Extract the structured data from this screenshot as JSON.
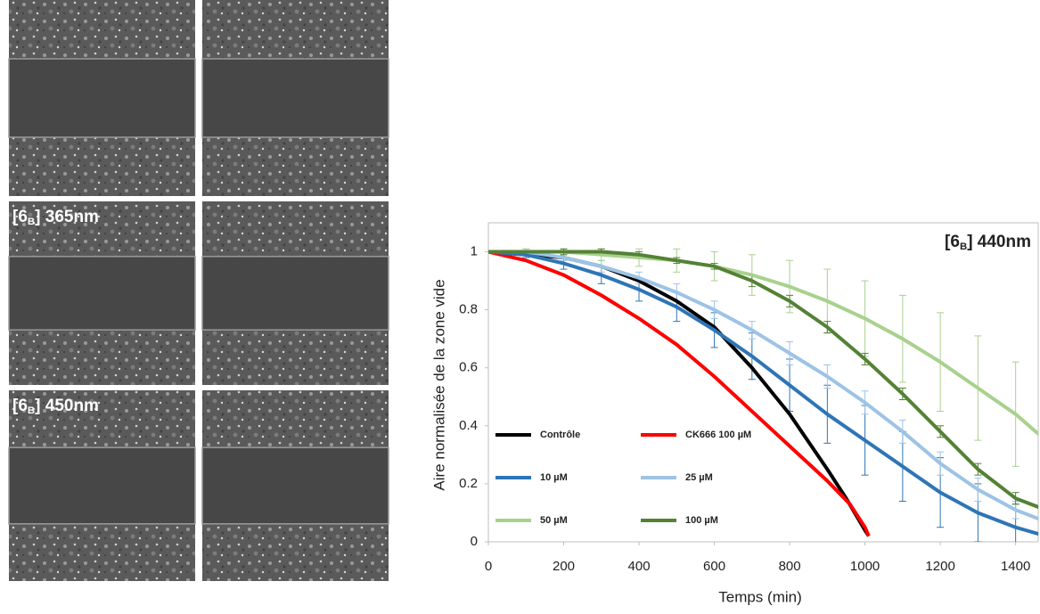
{
  "panels": [
    {
      "label": null
    },
    {
      "label": null
    },
    {
      "label": [
        "[6",
        "B",
        "] 365nm"
      ]
    },
    {
      "label": null
    },
    {
      "label": [
        "[6",
        "B",
        "] 450nm"
      ]
    },
    {
      "label": null
    }
  ],
  "chart_data": {
    "type": "line",
    "annotation": [
      "[6",
      "B",
      "] 440nm"
    ],
    "x_label": "Temps (min)",
    "y_label": "Aire normalisée de la zone vide",
    "xlim": [
      0,
      1460
    ],
    "ylim": [
      0,
      1.1
    ],
    "xticks": [
      0,
      200,
      400,
      600,
      800,
      1000,
      1200,
      1400
    ],
    "yticks": [
      0,
      0.2,
      0.4,
      0.6,
      0.8,
      1
    ],
    "legend": "lower left",
    "series": [
      {
        "name": "Contrôle",
        "color": "#000000",
        "x": [
          0,
          100,
          200,
          300,
          400,
          500,
          600,
          700,
          800,
          900,
          950,
          1000,
          1010
        ],
        "values": [
          1,
          0.99,
          0.98,
          0.95,
          0.9,
          0.83,
          0.74,
          0.6,
          0.44,
          0.25,
          0.15,
          0.04,
          0.02
        ]
      },
      {
        "name": "CK666 100 µM",
        "color": "#ff0000",
        "x": [
          0,
          100,
          200,
          300,
          400,
          500,
          600,
          700,
          800,
          900,
          960,
          1000,
          1010
        ],
        "values": [
          1,
          0.97,
          0.92,
          0.85,
          0.77,
          0.68,
          0.57,
          0.45,
          0.33,
          0.21,
          0.13,
          0.05,
          0.02
        ]
      },
      {
        "name": "10 µM",
        "color": "#2e75b6",
        "x": [
          0,
          100,
          200,
          300,
          400,
          500,
          600,
          700,
          800,
          900,
          1000,
          1100,
          1200,
          1300,
          1400,
          1480
        ],
        "values": [
          1,
          0.99,
          0.96,
          0.92,
          0.87,
          0.81,
          0.73,
          0.64,
          0.54,
          0.44,
          0.35,
          0.26,
          0.17,
          0.1,
          0.05,
          0.02
        ],
        "errors": [
          0,
          0.01,
          0.02,
          0.03,
          0.04,
          0.05,
          0.06,
          0.08,
          0.09,
          0.1,
          0.12,
          0.12,
          0.12,
          0.1,
          0.08,
          0.05
        ]
      },
      {
        "name": "25 µM",
        "color": "#9dc3e6",
        "x": [
          0,
          100,
          200,
          300,
          400,
          500,
          600,
          700,
          800,
          900,
          1000,
          1100,
          1200,
          1300,
          1400,
          1480
        ],
        "values": [
          1,
          1,
          0.98,
          0.95,
          0.91,
          0.86,
          0.8,
          0.73,
          0.65,
          0.57,
          0.48,
          0.38,
          0.27,
          0.18,
          0.11,
          0.07
        ],
        "errors": [
          0,
          0.01,
          0.01,
          0.02,
          0.02,
          0.03,
          0.03,
          0.03,
          0.04,
          0.04,
          0.04,
          0.04,
          0.04,
          0.04,
          0.03,
          0.03
        ]
      },
      {
        "name": "50 µM",
        "color": "#a9d18e",
        "x": [
          0,
          100,
          200,
          300,
          400,
          500,
          600,
          700,
          800,
          900,
          1000,
          1100,
          1200,
          1300,
          1400,
          1480
        ],
        "values": [
          1,
          1,
          1,
          0.99,
          0.98,
          0.97,
          0.95,
          0.92,
          0.88,
          0.83,
          0.77,
          0.7,
          0.62,
          0.53,
          0.44,
          0.35
        ],
        "errors": [
          0,
          0.01,
          0.01,
          0.02,
          0.03,
          0.04,
          0.05,
          0.07,
          0.09,
          0.11,
          0.13,
          0.15,
          0.17,
          0.18,
          0.18,
          0.17
        ]
      },
      {
        "name": "100 µM",
        "color": "#548235",
        "x": [
          0,
          100,
          200,
          300,
          400,
          500,
          600,
          700,
          800,
          900,
          1000,
          1100,
          1200,
          1300,
          1400,
          1480
        ],
        "values": [
          1,
          1,
          1,
          1,
          0.99,
          0.97,
          0.95,
          0.9,
          0.83,
          0.74,
          0.63,
          0.51,
          0.38,
          0.25,
          0.15,
          0.11
        ],
        "errors": [
          0,
          0,
          0.01,
          0.01,
          0.01,
          0.01,
          0.01,
          0.02,
          0.02,
          0.02,
          0.02,
          0.02,
          0.02,
          0.02,
          0.02,
          0.02
        ]
      }
    ]
  }
}
